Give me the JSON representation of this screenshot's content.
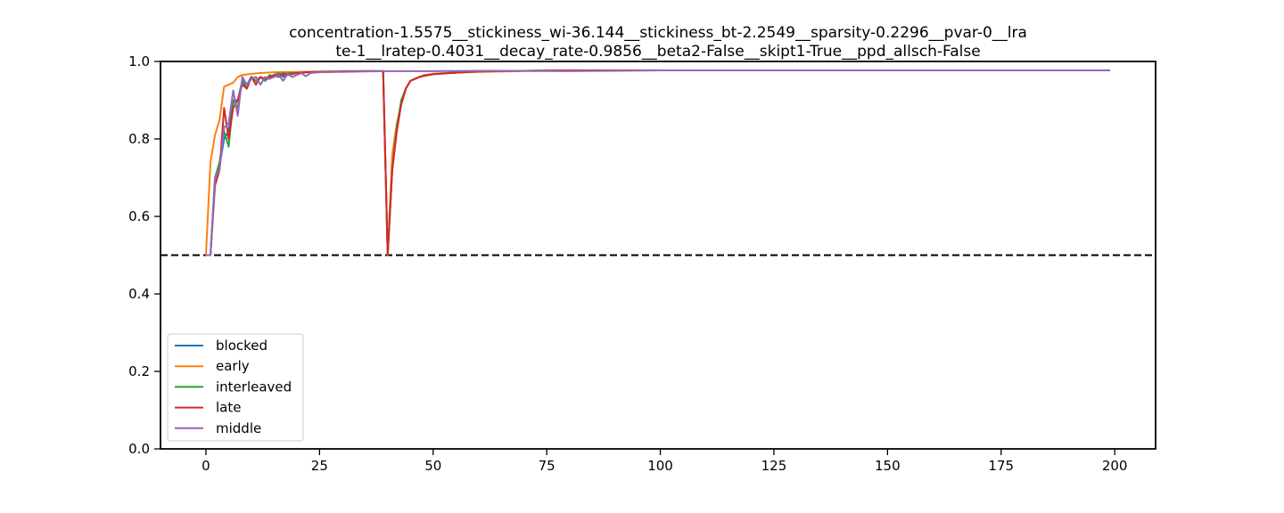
{
  "chart_data": {
    "type": "line",
    "title": [
      "concentration-1.5575__stickiness_wi-36.144__stickiness_bt-2.2549__sparsity-0.2296__pvar-0__lra",
      "te-1__lratep-0.4031__decay_rate-0.9856__beta2-False__skipt1-True__ppd_allsch-False"
    ],
    "xlabel": "",
    "ylabel": "",
    "xlim": [
      -10,
      209
    ],
    "ylim": [
      0.0,
      1.0
    ],
    "xticks": [
      0,
      25,
      50,
      75,
      100,
      125,
      150,
      175,
      200
    ],
    "yticks": [
      0.0,
      0.2,
      0.4,
      0.6,
      0.8,
      1.0
    ],
    "x_range": [
      0,
      199
    ],
    "grid": false,
    "legend_position": "lower-left",
    "reference_line": {
      "y": 0.5,
      "style": "dashed",
      "color": "#000000"
    },
    "series": [
      {
        "name": "blocked",
        "color": "#1f77b4",
        "points": [
          [
            0,
            0.5
          ],
          [
            1,
            0.5
          ],
          [
            2,
            0.7
          ],
          [
            3,
            0.73
          ],
          [
            4,
            0.8
          ],
          [
            5,
            0.82
          ],
          [
            6,
            0.9
          ],
          [
            7,
            0.9
          ],
          [
            8,
            0.95
          ],
          [
            9,
            0.94
          ],
          [
            10,
            0.96
          ],
          [
            11,
            0.95
          ],
          [
            12,
            0.96
          ],
          [
            13,
            0.95
          ],
          [
            14,
            0.96
          ],
          [
            15,
            0.965
          ],
          [
            16,
            0.97
          ],
          [
            17,
            0.96
          ],
          [
            18,
            0.97
          ],
          [
            20,
            0.97
          ],
          [
            22,
            0.972
          ],
          [
            25,
            0.973
          ],
          [
            30,
            0.975
          ],
          [
            35,
            0.975
          ],
          [
            39,
            0.975
          ],
          [
            40,
            0.5
          ],
          [
            41,
            0.72
          ],
          [
            42,
            0.82
          ],
          [
            43,
            0.9
          ],
          [
            44,
            0.93
          ],
          [
            45,
            0.95
          ],
          [
            46,
            0.955
          ],
          [
            47,
            0.96
          ],
          [
            48,
            0.963
          ],
          [
            50,
            0.968
          ],
          [
            55,
            0.972
          ],
          [
            60,
            0.975
          ],
          [
            70,
            0.976
          ],
          [
            80,
            0.977
          ],
          [
            100,
            0.977
          ],
          [
            150,
            0.977
          ],
          [
            199,
            0.977
          ]
        ]
      },
      {
        "name": "early",
        "color": "#ff7f0e",
        "points": [
          [
            0,
            0.5
          ],
          [
            1,
            0.74
          ],
          [
            2,
            0.81
          ],
          [
            3,
            0.85
          ],
          [
            4,
            0.935
          ],
          [
            5,
            0.94
          ],
          [
            6,
            0.945
          ],
          [
            7,
            0.96
          ],
          [
            8,
            0.965
          ],
          [
            10,
            0.968
          ],
          [
            12,
            0.97
          ],
          [
            15,
            0.972
          ],
          [
            20,
            0.973
          ],
          [
            25,
            0.974
          ],
          [
            30,
            0.975
          ],
          [
            35,
            0.975
          ],
          [
            39,
            0.975
          ],
          [
            40,
            0.5
          ],
          [
            41,
            0.76
          ],
          [
            42,
            0.84
          ],
          [
            43,
            0.89
          ],
          [
            44,
            0.93
          ],
          [
            45,
            0.95
          ],
          [
            46,
            0.955
          ],
          [
            47,
            0.96
          ],
          [
            48,
            0.965
          ],
          [
            50,
            0.968
          ],
          [
            55,
            0.971
          ],
          [
            60,
            0.973
          ],
          [
            70,
            0.975
          ],
          [
            80,
            0.976
          ],
          [
            100,
            0.977
          ],
          [
            150,
            0.977
          ],
          [
            199,
            0.977
          ]
        ]
      },
      {
        "name": "interleaved",
        "color": "#2ca02c",
        "points": [
          [
            0,
            0.5
          ],
          [
            1,
            0.5
          ],
          [
            2,
            0.7
          ],
          [
            3,
            0.74
          ],
          [
            4,
            0.82
          ],
          [
            5,
            0.78
          ],
          [
            6,
            0.9
          ],
          [
            7,
            0.88
          ],
          [
            8,
            0.95
          ],
          [
            9,
            0.93
          ],
          [
            10,
            0.96
          ],
          [
            11,
            0.95
          ],
          [
            12,
            0.96
          ],
          [
            13,
            0.95
          ],
          [
            14,
            0.965
          ],
          [
            15,
            0.96
          ],
          [
            16,
            0.97
          ],
          [
            17,
            0.965
          ],
          [
            18,
            0.97
          ],
          [
            20,
            0.97
          ],
          [
            22,
            0.972
          ],
          [
            25,
            0.973
          ],
          [
            30,
            0.974
          ],
          [
            35,
            0.975
          ],
          [
            39,
            0.975
          ],
          [
            40,
            0.5
          ],
          [
            41,
            0.72
          ],
          [
            42,
            0.83
          ],
          [
            43,
            0.9
          ],
          [
            44,
            0.93
          ],
          [
            45,
            0.95
          ],
          [
            46,
            0.955
          ],
          [
            47,
            0.96
          ],
          [
            48,
            0.963
          ],
          [
            50,
            0.967
          ],
          [
            55,
            0.971
          ],
          [
            60,
            0.974
          ],
          [
            70,
            0.976
          ],
          [
            80,
            0.977
          ],
          [
            100,
            0.977
          ],
          [
            150,
            0.977
          ],
          [
            199,
            0.977
          ]
        ]
      },
      {
        "name": "late",
        "color": "#d62728",
        "points": [
          [
            0,
            0.5
          ],
          [
            1,
            0.5
          ],
          [
            2,
            0.68
          ],
          [
            3,
            0.72
          ],
          [
            4,
            0.88
          ],
          [
            5,
            0.8
          ],
          [
            6,
            0.88
          ],
          [
            7,
            0.9
          ],
          [
            8,
            0.94
          ],
          [
            9,
            0.93
          ],
          [
            10,
            0.96
          ],
          [
            11,
            0.94
          ],
          [
            12,
            0.96
          ],
          [
            13,
            0.955
          ],
          [
            14,
            0.96
          ],
          [
            15,
            0.965
          ],
          [
            16,
            0.96
          ],
          [
            17,
            0.97
          ],
          [
            18,
            0.965
          ],
          [
            20,
            0.97
          ],
          [
            22,
            0.972
          ],
          [
            25,
            0.973
          ],
          [
            30,
            0.974
          ],
          [
            35,
            0.975
          ],
          [
            39,
            0.975
          ],
          [
            40,
            0.5
          ],
          [
            41,
            0.72
          ],
          [
            42,
            0.82
          ],
          [
            43,
            0.89
          ],
          [
            44,
            0.93
          ],
          [
            45,
            0.95
          ],
          [
            46,
            0.955
          ],
          [
            47,
            0.96
          ],
          [
            48,
            0.963
          ],
          [
            50,
            0.967
          ],
          [
            55,
            0.971
          ],
          [
            60,
            0.974
          ],
          [
            70,
            0.976
          ],
          [
            80,
            0.977
          ],
          [
            100,
            0.977
          ],
          [
            150,
            0.977
          ],
          [
            199,
            0.977
          ]
        ]
      },
      {
        "name": "middle",
        "color": "#9467bd",
        "points": [
          [
            0,
            0.5
          ],
          [
            1,
            0.5
          ],
          [
            2,
            0.7
          ],
          [
            3,
            0.72
          ],
          [
            4,
            0.83
          ],
          [
            5,
            0.84
          ],
          [
            6,
            0.925
          ],
          [
            7,
            0.86
          ],
          [
            8,
            0.96
          ],
          [
            9,
            0.94
          ],
          [
            10,
            0.955
          ],
          [
            11,
            0.96
          ],
          [
            12,
            0.94
          ],
          [
            13,
            0.96
          ],
          [
            14,
            0.955
          ],
          [
            15,
            0.96
          ],
          [
            16,
            0.965
          ],
          [
            17,
            0.95
          ],
          [
            18,
            0.968
          ],
          [
            19,
            0.96
          ],
          [
            20,
            0.965
          ],
          [
            21,
            0.97
          ],
          [
            22,
            0.962
          ],
          [
            23,
            0.97
          ],
          [
            25,
            0.972
          ],
          [
            30,
            0.973
          ],
          [
            35,
            0.974
          ],
          [
            40,
            0.975
          ],
          [
            45,
            0.975
          ],
          [
            50,
            0.975
          ],
          [
            60,
            0.976
          ],
          [
            70,
            0.976
          ],
          [
            80,
            0.975
          ],
          [
            90,
            0.976
          ],
          [
            100,
            0.977
          ],
          [
            150,
            0.977
          ],
          [
            199,
            0.977
          ]
        ]
      }
    ]
  }
}
